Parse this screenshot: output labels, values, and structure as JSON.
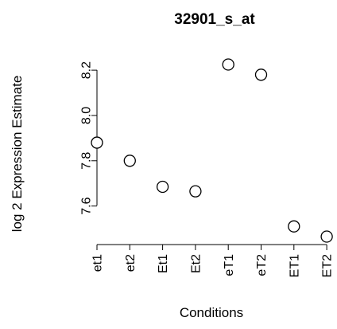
{
  "chart_data": {
    "type": "scatter",
    "title": "32901_s_at",
    "xlabel": "Conditions",
    "ylabel": "log 2 Expression Estimate",
    "categories": [
      "et1",
      "et2",
      "Et1",
      "Et2",
      "eT1",
      "eT2",
      "ET1",
      "ET2"
    ],
    "values": [
      7.88,
      7.8,
      7.685,
      7.665,
      8.225,
      8.18,
      7.51,
      7.465
    ],
    "y_ticks": [
      7.6,
      7.8,
      8.0,
      8.2
    ],
    "y_tick_labels": [
      "7.6",
      "7.8",
      "8.0",
      "8.2"
    ],
    "ylim": [
      7.465,
      8.225
    ],
    "grid": false,
    "marker": "open-circle"
  }
}
